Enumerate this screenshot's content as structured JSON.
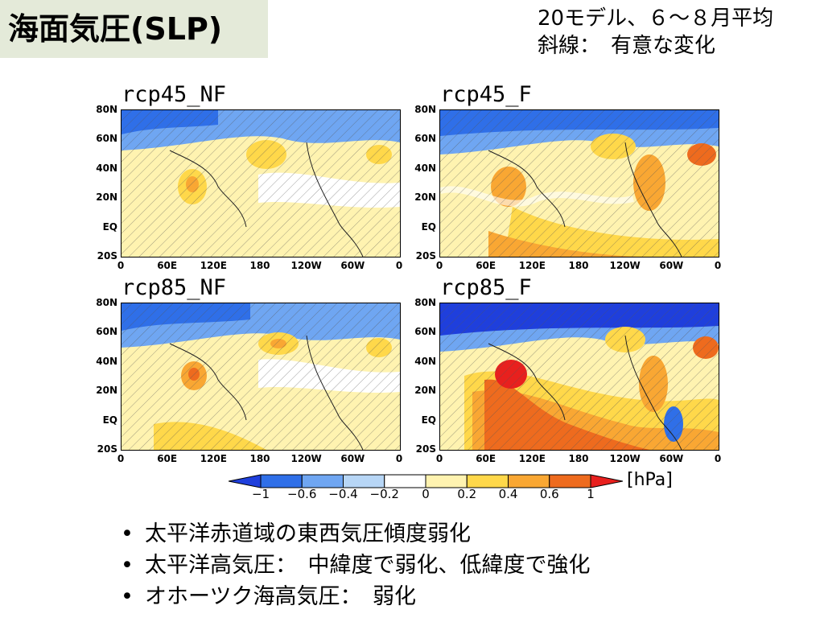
{
  "title": "海面気圧(SLP)",
  "note": {
    "line1": "20モデル、６～８月平均",
    "line2": "斜線：　有意な変化"
  },
  "panels": [
    {
      "label": "rcp45_NF"
    },
    {
      "label": "rcp45_F"
    },
    {
      "label": "rcp85_NF"
    },
    {
      "label": "rcp85_F"
    }
  ],
  "lat_ticks": [
    "80N",
    "60N",
    "40N",
    "20N",
    "EQ",
    "20S"
  ],
  "lon_ticks": [
    "0",
    "60E",
    "120E",
    "180",
    "120W",
    "60W",
    "0"
  ],
  "colorbar": {
    "labels": [
      "-1",
      "-0.6",
      "-0.4",
      "-0.2",
      "0",
      "0.2",
      "0.4",
      "0.6",
      "1"
    ],
    "colors": [
      "#1f3fdc",
      "#2f6fe8",
      "#6fa6f2",
      "#b7d6f6",
      "#ffffff",
      "#fff3b0",
      "#ffd84a",
      "#f9a733",
      "#ee6b1e",
      "#e8201e"
    ],
    "unit": "[hPa]"
  },
  "bullets": [
    "太平洋赤道域の東西気圧傾度弱化",
    "太平洋高気圧：　中緯度で弱化、低緯度で強化",
    "オホーツク海高気圧：　弱化"
  ]
}
